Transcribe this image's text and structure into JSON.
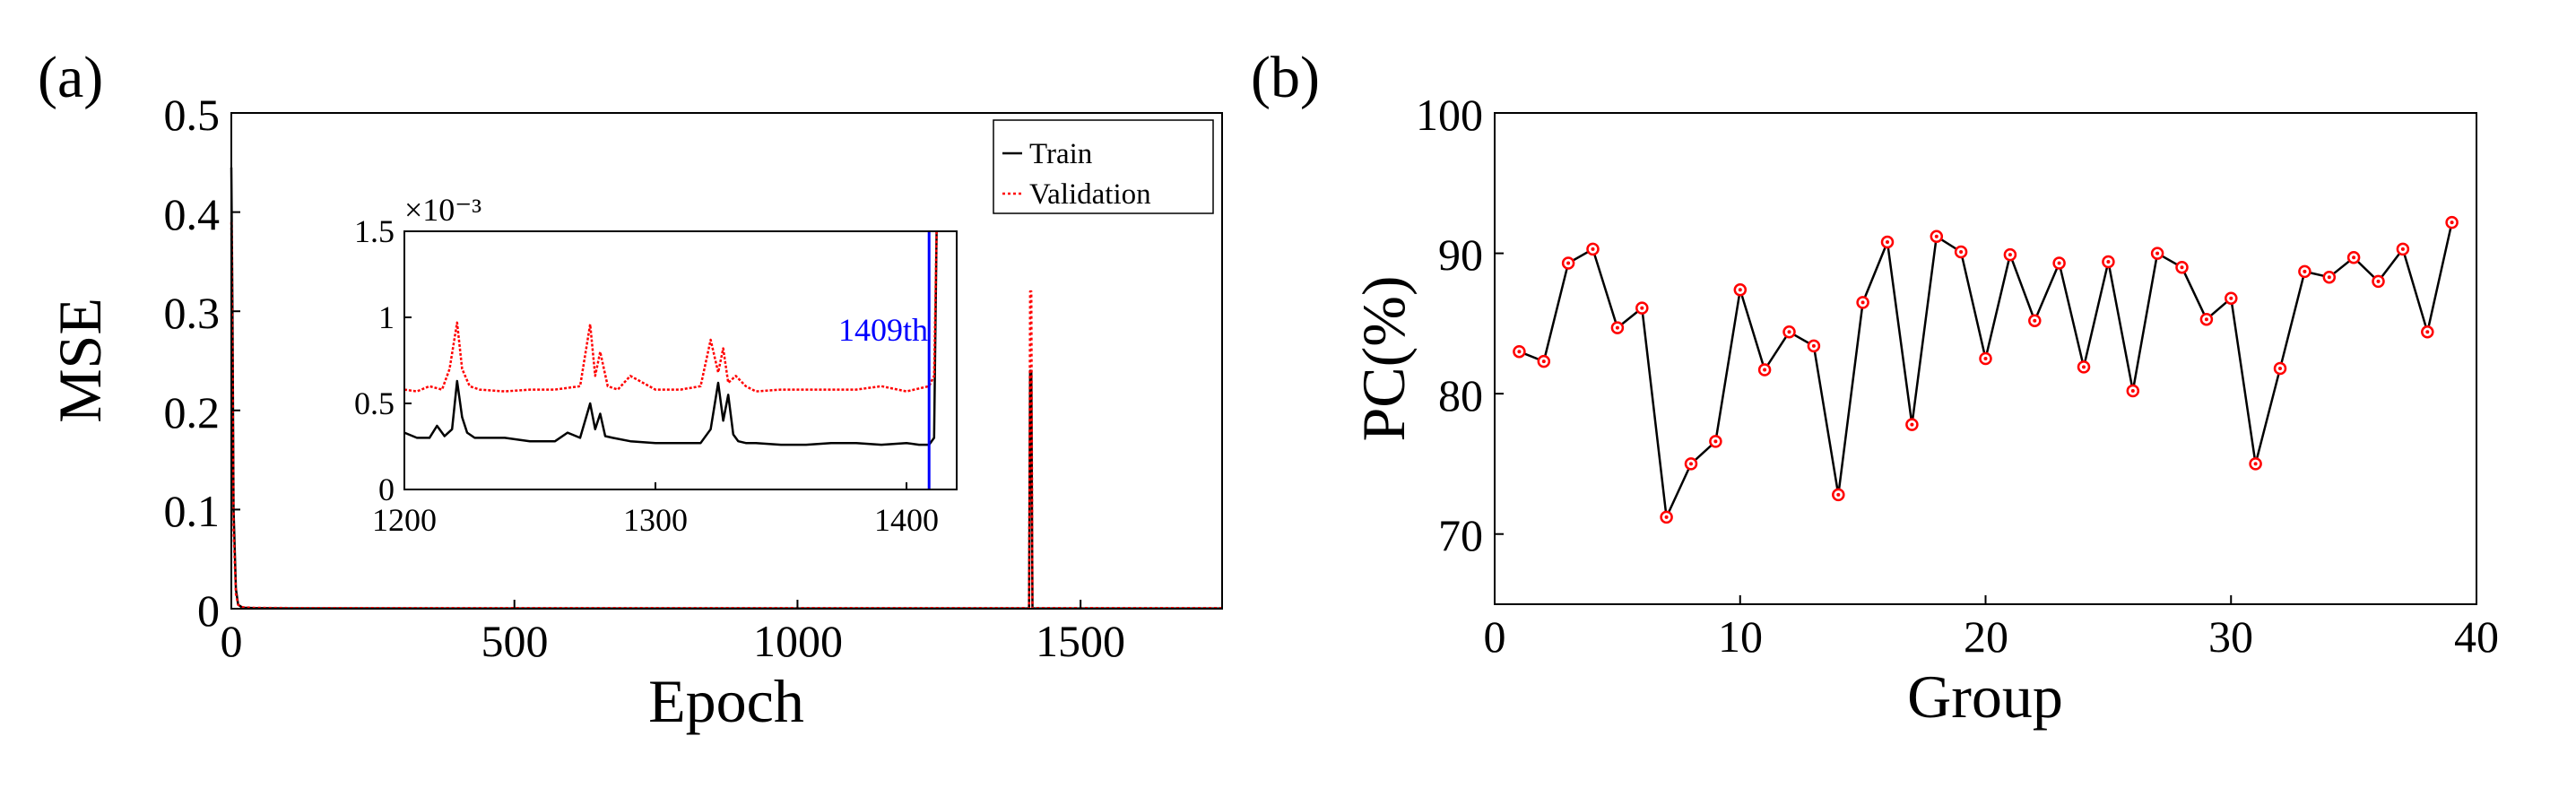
{
  "chart_data": [
    {
      "panel_label": "(a)",
      "type": "line",
      "xlabel": "Epoch",
      "ylabel": "MSE",
      "xlim": [
        0,
        1750
      ],
      "ylim": [
        0,
        0.5
      ],
      "x_ticks": [
        "0",
        "500",
        "1000",
        "1500"
      ],
      "y_ticks": [
        "0",
        "0.1",
        "0.2",
        "0.3",
        "0.4",
        "0.5"
      ],
      "legend": {
        "position": "top-right",
        "entries": [
          "Train",
          "Validation"
        ]
      },
      "series": [
        {
          "name": "Train",
          "color": "#000000",
          "style": "solid",
          "x": [
            0,
            2,
            4,
            8,
            12,
            20,
            40,
            100,
            400,
            800,
            1200,
            1400,
            1409,
            1411,
            1413,
            1415,
            1420,
            1750
          ],
          "values": [
            0.445,
            0.3,
            0.1,
            0.02,
            0.004,
            0.001,
            0.0006,
            0.0004,
            0.0003,
            0.0003,
            0.0003,
            0.0003,
            0.0003,
            0.24,
            0.24,
            0.0005,
            0.0003,
            0.0003
          ]
        },
        {
          "name": "Validation",
          "color": "#ff0000",
          "style": "dotted",
          "x": [
            0,
            2,
            4,
            8,
            12,
            20,
            40,
            100,
            400,
            800,
            1200,
            1400,
            1409,
            1411,
            1413,
            1415,
            1420,
            1750
          ],
          "values": [
            0.39,
            0.25,
            0.08,
            0.015,
            0.004,
            0.0015,
            0.0009,
            0.0007,
            0.0006,
            0.0006,
            0.0006,
            0.0006,
            0.0006,
            0.32,
            0.32,
            0.0008,
            0.0006,
            0.0006
          ]
        }
      ],
      "inset": {
        "xlim": [
          1200,
          1420
        ],
        "ylim": [
          0,
          1.5
        ],
        "x_ticks": [
          "1200",
          "1300",
          "1400"
        ],
        "y_ticks": [
          "0",
          "0.5",
          "1",
          "1.5"
        ],
        "y_multiplier": "×10⁻³",
        "annotation": "1409th",
        "annotation_color": "#0000ff",
        "marker_x": 1409,
        "series": [
          {
            "name": "Train",
            "color": "#000000",
            "style": "solid",
            "x": [
              1200,
              1205,
              1210,
              1213,
              1216,
              1219,
              1221,
              1223,
              1225,
              1228,
              1232,
              1240,
              1250,
              1260,
              1265,
              1270,
              1274,
              1276,
              1278,
              1280,
              1283,
              1290,
              1300,
              1310,
              1318,
              1322,
              1325,
              1327,
              1329,
              1331,
              1333,
              1336,
              1340,
              1350,
              1360,
              1370,
              1380,
              1390,
              1400,
              1405,
              1409,
              1411,
              1412
            ],
            "values": [
              0.33,
              0.3,
              0.3,
              0.37,
              0.31,
              0.35,
              0.63,
              0.42,
              0.33,
              0.3,
              0.3,
              0.3,
              0.28,
              0.28,
              0.33,
              0.3,
              0.5,
              0.35,
              0.44,
              0.31,
              0.3,
              0.28,
              0.27,
              0.27,
              0.27,
              0.35,
              0.62,
              0.4,
              0.55,
              0.32,
              0.28,
              0.27,
              0.27,
              0.26,
              0.26,
              0.27,
              0.27,
              0.26,
              0.27,
              0.26,
              0.26,
              0.3,
              1.5
            ]
          },
          {
            "name": "Validation",
            "color": "#ff0000",
            "style": "dotted",
            "x": [
              1200,
              1205,
              1210,
              1215,
              1218,
              1221,
              1223,
              1226,
              1230,
              1240,
              1250,
              1260,
              1270,
              1274,
              1276,
              1278,
              1281,
              1285,
              1290,
              1300,
              1310,
              1318,
              1322,
              1325,
              1327,
              1329,
              1332,
              1336,
              1340,
              1350,
              1360,
              1370,
              1380,
              1390,
              1400,
              1409,
              1411,
              1412
            ],
            "values": [
              0.58,
              0.57,
              0.6,
              0.58,
              0.7,
              0.97,
              0.7,
              0.6,
              0.58,
              0.57,
              0.58,
              0.58,
              0.6,
              0.96,
              0.66,
              0.8,
              0.6,
              0.58,
              0.66,
              0.58,
              0.58,
              0.6,
              0.87,
              0.68,
              0.82,
              0.62,
              0.66,
              0.6,
              0.57,
              0.58,
              0.58,
              0.58,
              0.58,
              0.6,
              0.57,
              0.6,
              0.66,
              1.5
            ]
          }
        ]
      }
    },
    {
      "panel_label": "(b)",
      "type": "line",
      "xlabel": "Group",
      "ylabel": "PC(%)",
      "xlim": [
        0,
        40
      ],
      "ylim": [
        65,
        100
      ],
      "x_ticks": [
        "0",
        "10",
        "20",
        "30",
        "40"
      ],
      "y_ticks": [
        "70",
        "80",
        "90",
        "100"
      ],
      "line_color": "#000000",
      "marker_color": "#ff0000",
      "x": [
        1,
        2,
        3,
        4,
        5,
        6,
        7,
        8,
        9,
        10,
        11,
        12,
        13,
        14,
        15,
        16,
        17,
        18,
        19,
        20,
        21,
        22,
        23,
        24,
        25,
        26,
        27,
        28,
        29,
        30,
        31,
        32,
        33,
        34,
        35,
        36,
        37,
        38,
        39
      ],
      "values": [
        83,
        82.3,
        89.3,
        90.3,
        84.7,
        86.1,
        71.2,
        75,
        76.6,
        87.4,
        81.7,
        84.4,
        83.4,
        72.8,
        86.5,
        90.8,
        77.8,
        91.2,
        90.1,
        82.5,
        89.9,
        85.2,
        89.3,
        81.9,
        89.4,
        80.2,
        90,
        89,
        85.3,
        86.8,
        75,
        81.8,
        88.7,
        88.3,
        89.7,
        88,
        90.3,
        84.4,
        92.2
      ]
    }
  ]
}
